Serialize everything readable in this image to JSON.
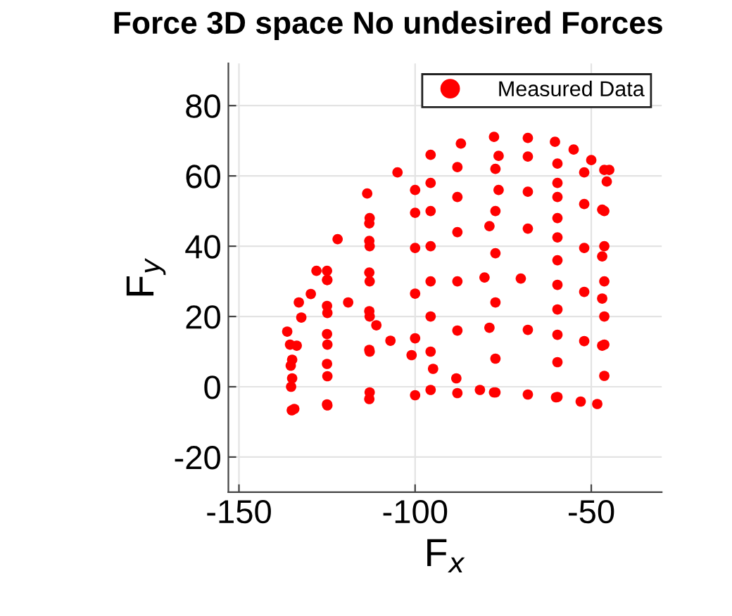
{
  "chart_data": {
    "type": "scatter",
    "title": "Force 3D space No undesired Forces",
    "xlabel": "F$_{x}$",
    "ylabel": "F$_{y}$",
    "xlim": [
      -153,
      -30
    ],
    "ylim": [
      -30,
      92
    ],
    "xticks": [
      -150,
      -100,
      -50
    ],
    "yticks": [
      -20,
      0,
      20,
      40,
      60,
      80
    ],
    "grid": true,
    "legend": "top right",
    "marker": "circle",
    "series": [
      {
        "name": "Measured Data",
        "color": "#ff0000",
        "x": [
          -134.3,
          -125,
          -113,
          -100,
          -88,
          -77.6,
          -68,
          -60,
          -53,
          -48.3,
          -134.9,
          -125,
          -113,
          -100,
          -88,
          -78.9,
          -68,
          -59.6,
          -52,
          -46.9,
          -134.9,
          -125,
          -113,
          -100,
          -88,
          -80.3,
          -70,
          -59.6,
          -52,
          -46.9,
          -133.6,
          -125,
          -113,
          -100,
          -88,
          -78.9,
          -68,
          -59.6,
          -52,
          -46.9,
          -132.3,
          -125,
          -113,
          -100,
          -88,
          -76.3,
          -68,
          -59.6,
          -52,
          -46.9,
          -129.6,
          -125,
          -113,
          -100,
          -88,
          -76.3,
          -68,
          -59.6,
          -52,
          -45.6,
          -136.3,
          -133,
          -128,
          -122,
          -113.6,
          -105,
          -95.6,
          -87,
          -77.6,
          -68,
          -60.3,
          -55,
          -50,
          -44.9,
          -135,
          -135.2,
          -135.3,
          -135.5,
          -124.9,
          -124.9,
          -124.9,
          -124.9,
          -124.9,
          -112.9,
          -112.9,
          -112.9,
          -112.9,
          -112.9,
          -112.9,
          -95.6,
          -95.6,
          -95.6,
          -95.6,
          -95.6,
          -95.6,
          -95.6,
          -77.2,
          -77.2,
          -77.2,
          -77.2,
          -77.2,
          -77.2,
          -59.6,
          -59.6,
          -59.6,
          -59.6,
          -59.6,
          -59.6,
          -46.3,
          -46.3,
          -46.3,
          -46.3,
          -46.3,
          -46.3,
          -46.3,
          -119,
          -111,
          -107,
          -101,
          -94.9,
          -88.3,
          -81.6
        ],
        "values": [
          -6.3,
          -5.0,
          -3.5,
          -2.4,
          -1.8,
          -1.6,
          -2.2,
          -3.0,
          -4.2,
          -4.9,
          2.4,
          6.5,
          10.5,
          13.8,
          16,
          16.8,
          16.2,
          14.8,
          13,
          11.7,
          7.7,
          15,
          21.5,
          26.5,
          30,
          31.1,
          30.8,
          29,
          27,
          25.1,
          11.7,
          23,
          32.5,
          39.5,
          44,
          45.7,
          45,
          42.5,
          39.5,
          37.1,
          19.7,
          30.4,
          41.5,
          49.5,
          54,
          56,
          55.5,
          54,
          52,
          50.4,
          26.4,
          33,
          46.5,
          56,
          62.5,
          65.7,
          65.5,
          63.5,
          61,
          58.4,
          15.7,
          24,
          33,
          42,
          55,
          61,
          66,
          69.2,
          71.1,
          70.8,
          69.7,
          67.5,
          64.5,
          61.7,
          -6.7,
          0,
          6,
          12,
          -5.3,
          3,
          12,
          21,
          30.4,
          -1.6,
          10,
          20,
          30,
          40,
          48,
          -0.9,
          10,
          20,
          30,
          40,
          50,
          58,
          -1.6,
          8,
          24,
          38,
          50,
          62,
          -2.9,
          7,
          22,
          36,
          48,
          58,
          3.1,
          12,
          20,
          30,
          40,
          50,
          61.7,
          24,
          17.5,
          13.1,
          9,
          5.1,
          2.4,
          -0.9
        ]
      }
    ]
  }
}
